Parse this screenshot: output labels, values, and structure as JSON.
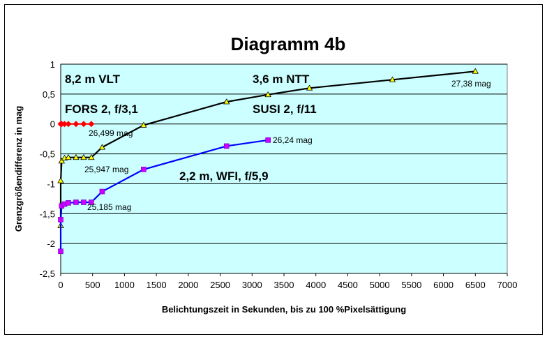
{
  "chart_data": {
    "type": "line",
    "title": "Diagramm 4b",
    "xlabel": "Belichtungszeit in Sekunden, bis zu 100 %Pixelsättigung",
    "ylabel": "Grenzgrößendifferenz in mag",
    "xlim": [
      0,
      7000
    ],
    "ylim": [
      -2.5,
      1
    ],
    "x_ticks": [
      "0",
      "500",
      "1000",
      "1500",
      "2000",
      "2500",
      "3000",
      "3500",
      "4000",
      "4500",
      "5000",
      "5500",
      "6000",
      "6500",
      "7000"
    ],
    "y_ticks": [
      "1",
      "0,5",
      "0",
      "-0,5",
      "-1",
      "-1,5",
      "-2",
      "-2,5"
    ],
    "grid": "horizontal",
    "plot_background": "#ccffff",
    "series": [
      {
        "name": "",
        "color": "#000000",
        "marker": "triangle",
        "marker_color": "#ffff00",
        "points": [
          [
            0,
            -1.7
          ],
          [
            0,
            -0.95
          ],
          [
            15,
            -0.62
          ],
          [
            60,
            -0.57
          ],
          [
            120,
            -0.56
          ],
          [
            240,
            -0.56
          ],
          [
            360,
            -0.56
          ],
          [
            480,
            -0.56
          ],
          [
            650,
            -0.39
          ],
          [
            1300,
            -0.02
          ],
          [
            2600,
            0.37
          ],
          [
            3250,
            0.49
          ],
          [
            3900,
            0.6
          ],
          [
            5200,
            0.74
          ],
          [
            6500,
            0.88
          ]
        ]
      },
      {
        "name": "",
        "color": "#0000ff",
        "marker": "square",
        "marker_color": "#cc00ff",
        "points": [
          [
            0,
            -2.13
          ],
          [
            0,
            -1.6
          ],
          [
            15,
            -1.37
          ],
          [
            60,
            -1.34
          ],
          [
            120,
            -1.32
          ],
          [
            240,
            -1.31
          ],
          [
            360,
            -1.31
          ],
          [
            480,
            -1.31
          ],
          [
            650,
            -1.13
          ],
          [
            1300,
            -0.76
          ],
          [
            2600,
            -0.37
          ],
          [
            3250,
            -0.27
          ]
        ]
      },
      {
        "name": "",
        "color": "#ff0000",
        "marker": "diamond",
        "marker_color": "#ff0000",
        "points": [
          [
            0,
            0
          ],
          [
            15,
            0
          ],
          [
            60,
            0
          ],
          [
            120,
            0
          ],
          [
            240,
            0
          ],
          [
            360,
            0
          ],
          [
            480,
            0
          ]
        ]
      }
    ],
    "annotations": {
      "vlt": "8,2 m VLT",
      "fors": "FORS 2, f/3,1",
      "ntt": "3,6 m NTT",
      "susi": "SUSI 2, f/11",
      "wfi": "2,2 m, WFI, f/5,9",
      "mag_fors": "26,499 mag",
      "mag_ntt": "27,38 mag",
      "mag_wfi": "26,24 mag",
      "mag_low_ntt": "25,947 mag",
      "mag_low_wfi": "25,185 mag"
    }
  }
}
